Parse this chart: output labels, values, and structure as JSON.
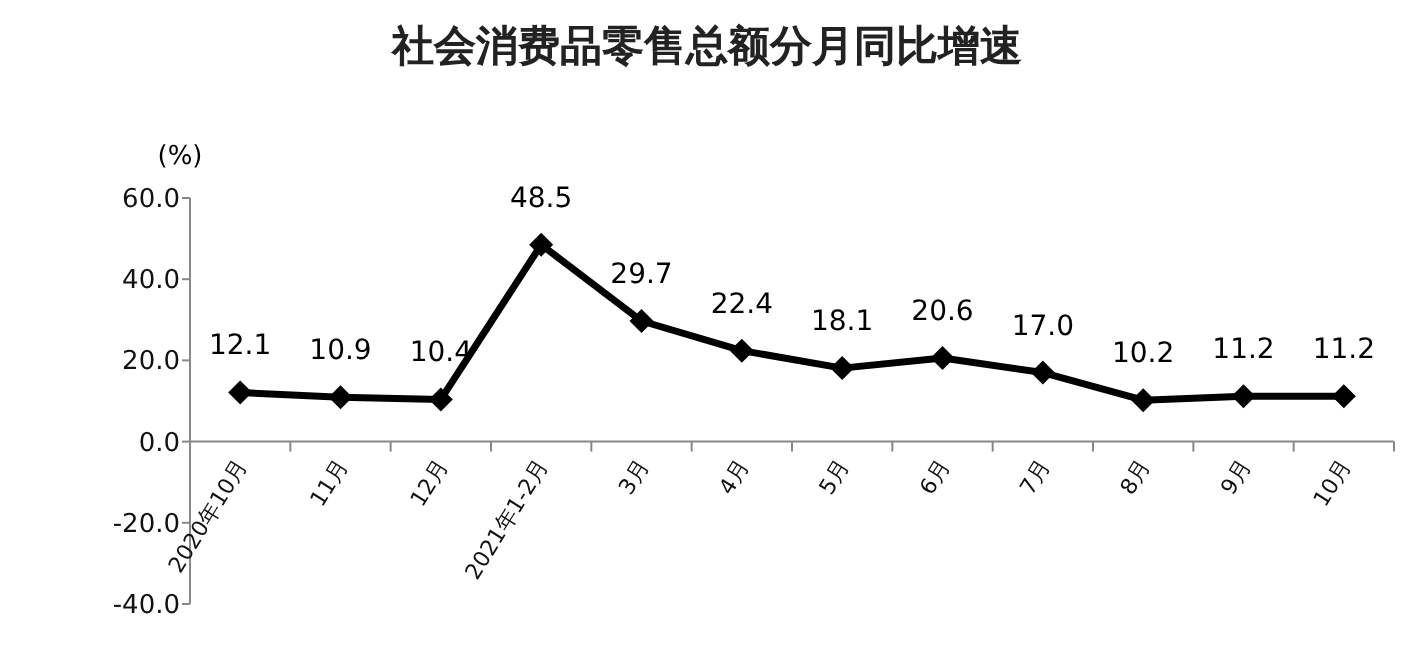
{
  "chart_data": {
    "type": "line",
    "title": "社会消费品零售总额分月同比增速",
    "ylabel": "(%)",
    "categories": [
      "2020年10月",
      "11月",
      "12月",
      "2021年1-2月",
      "3月",
      "4月",
      "5月",
      "6月",
      "7月",
      "8月",
      "9月",
      "10月"
    ],
    "series": [
      {
        "color": "#000000",
        "values": [
          12.1,
          10.9,
          10.4,
          48.5,
          29.7,
          22.4,
          18.1,
          20.6,
          17.0,
          10.2,
          11.2,
          11.2
        ],
        "value_labels": [
          "12.1",
          "10.9",
          "10.4",
          "48.5",
          "29.7",
          "22.4",
          "18.1",
          "20.6",
          "17.0",
          "10.2",
          "11.2",
          "11.2"
        ]
      }
    ],
    "ylim": [
      -40,
      60
    ],
    "yticks": [
      {
        "value": -40,
        "label": "-40.0"
      },
      {
        "value": -20,
        "label": "-20.0"
      },
      {
        "value": 0,
        "label": "0.0"
      },
      {
        "value": 20,
        "label": "20.0"
      },
      {
        "value": 40,
        "label": "40.0"
      },
      {
        "value": 60,
        "label": "60.0"
      }
    ],
    "marker": "diamond"
  }
}
